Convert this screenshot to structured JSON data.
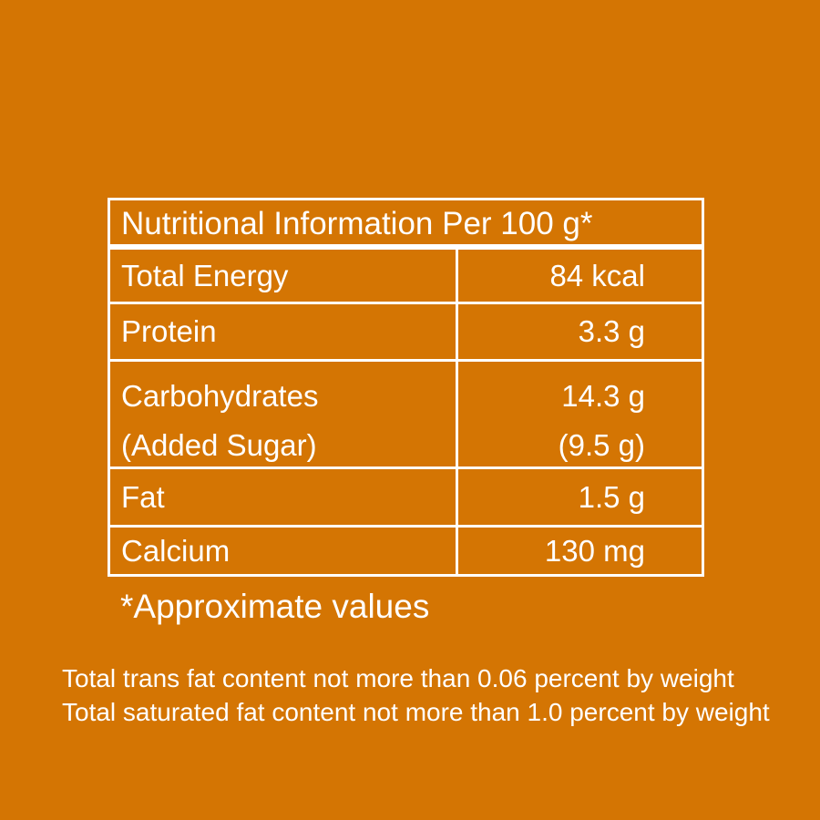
{
  "colors": {
    "background": "#d47503",
    "text": "#ffffff",
    "border": "#ffffff"
  },
  "table": {
    "title": "Nutritional Information Per 100 g*",
    "rows": [
      {
        "name": "Total Energy",
        "value": "84 kcal"
      },
      {
        "name": "Protein",
        "value": "3.3 g"
      },
      {
        "name": "Carbohydrates",
        "value": "14.3 g",
        "sub_name": "(Added Sugar)",
        "sub_value": "(9.5 g)"
      },
      {
        "name": "Fat",
        "value": "1.5 g"
      },
      {
        "name": "Calcium",
        "value": "130 mg"
      }
    ]
  },
  "footnote": "*Approximate values",
  "notes": [
    "Total trans fat content not more than 0.06 percent by weight",
    "Total saturated fat content not more than 1.0 percent by weight"
  ]
}
